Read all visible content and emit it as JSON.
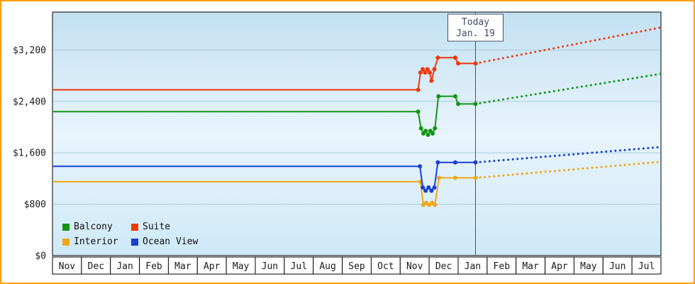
{
  "chart_data": {
    "type": "line",
    "x_axis": {
      "months": [
        "Nov",
        "Dec",
        "Jan",
        "Feb",
        "Mar",
        "Apr",
        "May",
        "Jun",
        "Jul",
        "Aug",
        "Sep",
        "Oct",
        "Nov",
        "Dec",
        "Jan",
        "Feb",
        "Mar",
        "Apr",
        "May",
        "Jun",
        "Jul"
      ]
    },
    "y_axis": {
      "tick_labels": [
        "$0",
        "$800",
        "$1,600",
        "$2,400",
        "$3,200"
      ],
      "tick_values": [
        0,
        800,
        1600,
        2400,
        3200
      ],
      "range": [
        0,
        3790
      ]
    },
    "today": {
      "line1": "Today",
      "line2": "Jan. 19",
      "month_position": 14.6
    },
    "legend_order": [
      "Balcony",
      "Suite",
      "Interior",
      "Ocean View"
    ],
    "series": [
      {
        "name": "Balcony",
        "color": "#129612",
        "history": [
          [
            0,
            2240
          ],
          [
            12.62,
            2240
          ],
          [
            12.72,
            1980
          ],
          [
            12.8,
            1900
          ],
          [
            12.88,
            1940
          ],
          [
            12.96,
            1880
          ],
          [
            13.04,
            1940
          ],
          [
            13.12,
            1900
          ],
          [
            13.2,
            1980
          ],
          [
            13.32,
            2480
          ],
          [
            13.9,
            2480
          ],
          [
            14.0,
            2360
          ],
          [
            14.6,
            2360
          ]
        ],
        "forecast": [
          [
            14.6,
            2360
          ],
          [
            21,
            2830
          ]
        ]
      },
      {
        "name": "Suite",
        "color": "#ee390b",
        "history": [
          [
            0,
            2580
          ],
          [
            12.62,
            2580
          ],
          [
            12.7,
            2850
          ],
          [
            12.78,
            2900
          ],
          [
            12.86,
            2850
          ],
          [
            12.94,
            2900
          ],
          [
            13.02,
            2850
          ],
          [
            13.08,
            2720
          ],
          [
            13.18,
            2900
          ],
          [
            13.3,
            3080
          ],
          [
            13.9,
            3080
          ],
          [
            14.0,
            2990
          ],
          [
            14.6,
            2990
          ]
        ],
        "forecast": [
          [
            14.6,
            2990
          ],
          [
            21,
            3550
          ]
        ]
      },
      {
        "name": "Interior",
        "color": "#f0a617",
        "history": [
          [
            0,
            1150
          ],
          [
            12.7,
            1150
          ],
          [
            12.8,
            790
          ],
          [
            12.9,
            820
          ],
          [
            13.0,
            790
          ],
          [
            13.1,
            820
          ],
          [
            13.2,
            790
          ],
          [
            13.34,
            1210
          ],
          [
            13.9,
            1210
          ],
          [
            14.6,
            1210
          ]
        ],
        "forecast": [
          [
            14.6,
            1210
          ],
          [
            21,
            1460
          ]
        ]
      },
      {
        "name": "Ocean View",
        "color": "#1840d8",
        "history": [
          [
            0,
            1390
          ],
          [
            12.68,
            1390
          ],
          [
            12.78,
            1060
          ],
          [
            12.88,
            1010
          ],
          [
            12.98,
            1060
          ],
          [
            13.08,
            1010
          ],
          [
            13.18,
            1060
          ],
          [
            13.3,
            1450
          ],
          [
            13.9,
            1450
          ],
          [
            14.6,
            1450
          ]
        ],
        "forecast": [
          [
            14.6,
            1450
          ],
          [
            21,
            1690
          ]
        ]
      }
    ]
  }
}
